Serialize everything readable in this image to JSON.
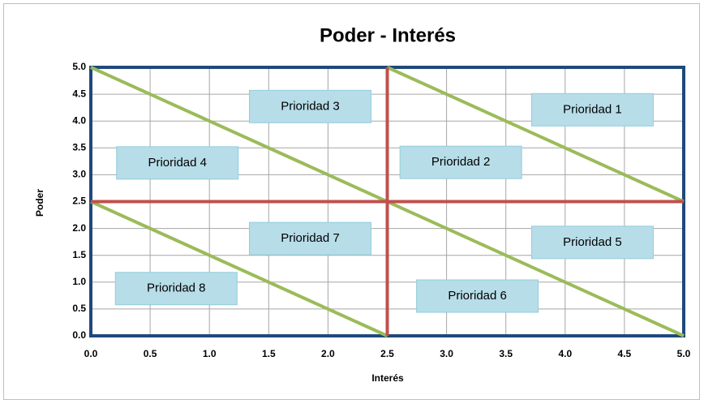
{
  "chart_data": {
    "type": "line",
    "title": "Poder - Interés",
    "xlabel": "Interés",
    "ylabel": "Poder",
    "xlim": [
      0,
      5
    ],
    "ylim": [
      0,
      5
    ],
    "xticks": [
      {
        "value": 0,
        "label": "0.0"
      },
      {
        "value": 0.5,
        "label": "0.5"
      },
      {
        "value": 1,
        "label": "1.0"
      },
      {
        "value": 1.5,
        "label": "1.5"
      },
      {
        "value": 2,
        "label": "2.0"
      },
      {
        "value": 2.5,
        "label": "2.5"
      },
      {
        "value": 3,
        "label": "3.0"
      },
      {
        "value": 3.5,
        "label": "3.5"
      },
      {
        "value": 4,
        "label": "4.0"
      },
      {
        "value": 4.5,
        "label": "4.5"
      },
      {
        "value": 5,
        "label": "5.0"
      }
    ],
    "yticks": [
      {
        "value": 0,
        "label": "0.0"
      },
      {
        "value": 0.5,
        "label": "0.5"
      },
      {
        "value": 1,
        "label": "1.0"
      },
      {
        "value": 1.5,
        "label": "1.5"
      },
      {
        "value": 2,
        "label": "2.0"
      },
      {
        "value": 2.5,
        "label": "2.5"
      },
      {
        "value": 3,
        "label": "3.0"
      },
      {
        "value": 3.5,
        "label": "3.5"
      },
      {
        "value": 4,
        "label": "4.0"
      },
      {
        "value": 4.5,
        "label": "4.5"
      },
      {
        "value": 5,
        "label": "5.0"
      }
    ],
    "grid": true,
    "series": [
      {
        "color": "#9bbb59",
        "x": [
          0,
          5
        ],
        "values": [
          5,
          0
        ]
      },
      {
        "color": "#9bbb59",
        "x": [
          2.5,
          5
        ],
        "values": [
          5,
          2.5
        ]
      },
      {
        "color": "#9bbb59",
        "x": [
          0,
          2.5
        ],
        "values": [
          2.5,
          0
        ]
      },
      {
        "color": "#c0504d",
        "x": [
          2.5,
          2.5
        ],
        "values": [
          0,
          5
        ]
      },
      {
        "color": "#c0504d",
        "x": [
          0,
          5
        ],
        "values": [
          2.5,
          2.5
        ]
      }
    ],
    "annotations": [
      {
        "text": "Prioridad 1",
        "x": 4.23,
        "y": 4.21
      },
      {
        "text": "Prioridad 2",
        "x": 3.12,
        "y": 3.23
      },
      {
        "text": "Prioridad 3",
        "x": 1.85,
        "y": 4.27
      },
      {
        "text": "Prioridad 4",
        "x": 0.73,
        "y": 3.22
      },
      {
        "text": "Prioridad 5",
        "x": 4.23,
        "y": 1.74
      },
      {
        "text": "Prioridad 6",
        "x": 3.26,
        "y": 0.74
      },
      {
        "text": "Prioridad 7",
        "x": 1.85,
        "y": 1.81
      },
      {
        "text": "Prioridad 8",
        "x": 0.72,
        "y": 0.88
      }
    ]
  }
}
